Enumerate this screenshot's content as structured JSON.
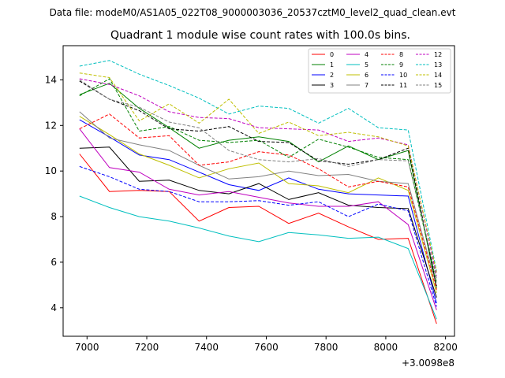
{
  "header": {
    "data_file": "Data file: modeM0/AS1A05_022T08_9000003036_20537cztM0_level2_quad_clean.evt"
  },
  "chart_data": {
    "type": "line",
    "title": "Quadrant 1 module wise count rates with 100.0s bins.",
    "xlabel": "",
    "ylabel": "",
    "x_offset_label": "+3.0098e8",
    "xlim": [
      6920,
      8230
    ],
    "ylim": [
      2.75,
      15.5
    ],
    "x_ticks": [
      7000,
      7200,
      7400,
      7600,
      7800,
      8000,
      8200
    ],
    "y_ticks": [
      4,
      6,
      8,
      10,
      12,
      14
    ],
    "x": [
      6975,
      7075,
      7175,
      7275,
      7375,
      7475,
      7575,
      7675,
      7775,
      7875,
      7975,
      8075,
      8170
    ],
    "legend_position": "top-right",
    "series": [
      {
        "name": "0",
        "color": "#ff0000",
        "dash": "solid",
        "values": [
          10.75,
          9.1,
          9.15,
          9.1,
          7.8,
          8.4,
          8.45,
          7.7,
          8.15,
          7.55,
          7.0,
          7.05,
          3.3
        ]
      },
      {
        "name": "1",
        "color": "#008000",
        "dash": "solid",
        "values": [
          13.35,
          13.85,
          12.75,
          11.9,
          11.0,
          11.35,
          11.5,
          11.3,
          10.4,
          11.1,
          10.5,
          10.9,
          4.85
        ]
      },
      {
        "name": "2",
        "color": "#0000ff",
        "dash": "solid",
        "values": [
          12.25,
          11.5,
          10.7,
          10.5,
          9.95,
          9.4,
          9.15,
          9.7,
          9.2,
          9.0,
          8.95,
          8.9,
          4.2
        ]
      },
      {
        "name": "3",
        "color": "#000000",
        "dash": "solid",
        "values": [
          11.0,
          11.05,
          9.55,
          9.6,
          9.15,
          9.0,
          9.45,
          8.75,
          9.05,
          8.5,
          8.4,
          8.35,
          4.45
        ]
      },
      {
        "name": "4",
        "color": "#bf00bf",
        "dash": "solid",
        "values": [
          11.85,
          10.15,
          9.95,
          9.2,
          8.95,
          9.1,
          8.85,
          8.6,
          8.45,
          8.45,
          8.65,
          7.65,
          3.9
        ]
      },
      {
        "name": "5",
        "color": "#00bfbf",
        "dash": "solid",
        "values": [
          8.9,
          8.4,
          8.0,
          7.8,
          7.5,
          7.15,
          6.9,
          7.3,
          7.2,
          7.05,
          7.1,
          6.6,
          3.5
        ]
      },
      {
        "name": "6",
        "color": "#bfbf00",
        "dash": "solid",
        "values": [
          12.4,
          11.6,
          10.75,
          10.25,
          9.7,
          10.1,
          10.35,
          9.45,
          9.35,
          9.05,
          9.7,
          9.15,
          4.65
        ]
      },
      {
        "name": "7",
        "color": "#808080",
        "dash": "solid",
        "values": [
          12.6,
          11.45,
          11.15,
          10.9,
          10.25,
          9.65,
          9.75,
          10.0,
          9.8,
          9.85,
          9.55,
          9.45,
          4.95
        ]
      },
      {
        "name": "8",
        "color": "#ff0000",
        "dash": "dashed",
        "values": [
          11.85,
          12.5,
          11.45,
          11.55,
          10.25,
          10.4,
          10.85,
          10.7,
          10.1,
          9.3,
          9.55,
          9.3,
          4.8
        ]
      },
      {
        "name": "9",
        "color": "#008000",
        "dash": "dashed",
        "values": [
          13.3,
          14.05,
          11.75,
          11.95,
          11.35,
          11.25,
          11.35,
          10.6,
          11.4,
          11.05,
          10.6,
          10.5,
          5.1
        ]
      },
      {
        "name": "10",
        "color": "#0000ff",
        "dash": "dashed",
        "values": [
          10.2,
          9.75,
          9.2,
          9.1,
          8.65,
          8.65,
          8.7,
          8.5,
          8.65,
          8.0,
          8.55,
          8.25,
          4.05
        ]
      },
      {
        "name": "11",
        "color": "#000000",
        "dash": "dashed",
        "values": [
          13.95,
          13.15,
          12.65,
          11.85,
          11.75,
          11.95,
          11.3,
          11.25,
          10.45,
          10.3,
          10.5,
          11.0,
          4.95
        ]
      },
      {
        "name": "12",
        "color": "#bf00bf",
        "dash": "dashed",
        "values": [
          14.05,
          13.8,
          13.3,
          12.6,
          12.35,
          12.3,
          11.9,
          11.85,
          11.8,
          11.3,
          11.45,
          11.15,
          5.4
        ]
      },
      {
        "name": "13",
        "color": "#00bfbf",
        "dash": "dashed",
        "values": [
          14.6,
          14.85,
          14.25,
          13.75,
          13.2,
          12.5,
          12.85,
          12.75,
          12.1,
          12.75,
          11.9,
          11.8,
          5.6
        ]
      },
      {
        "name": "14",
        "color": "#bfbf00",
        "dash": "dashed",
        "values": [
          14.3,
          14.1,
          12.2,
          12.95,
          12.1,
          13.15,
          11.65,
          12.15,
          11.55,
          11.7,
          11.5,
          11.1,
          5.55
        ]
      },
      {
        "name": "15",
        "color": "#808080",
        "dash": "dashed",
        "values": [
          14.0,
          13.15,
          12.8,
          12.15,
          11.9,
          10.9,
          10.5,
          10.4,
          10.55,
          10.2,
          10.5,
          10.45,
          5.3
        ]
      }
    ]
  }
}
